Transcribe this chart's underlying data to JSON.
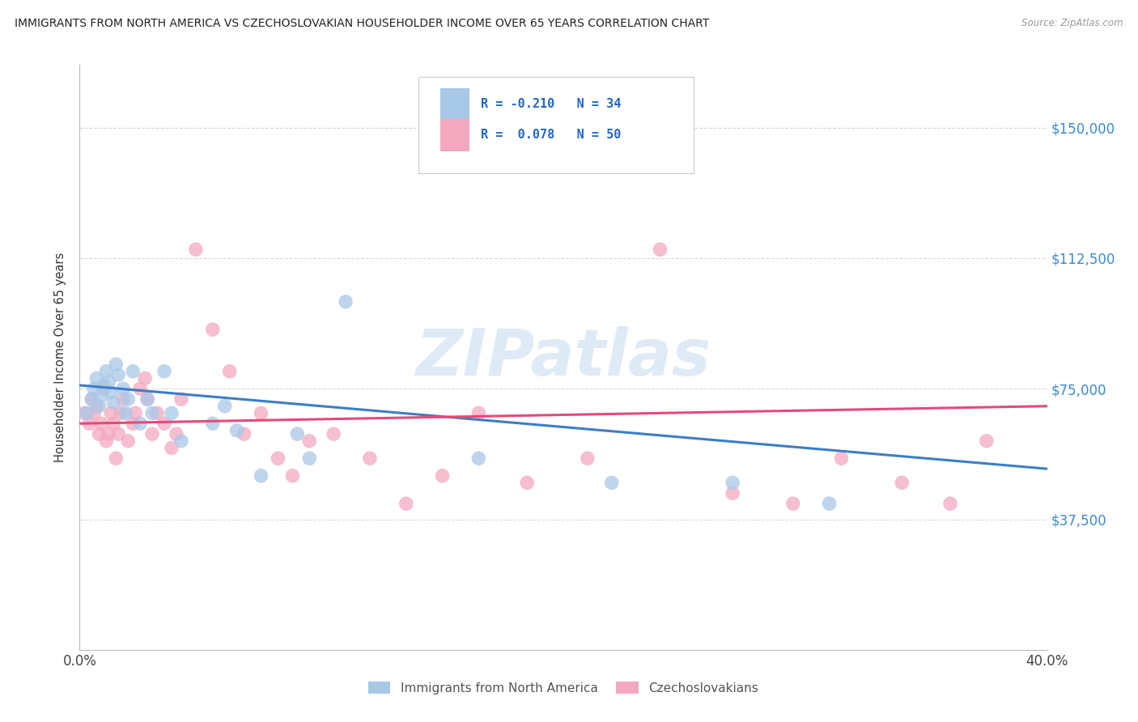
{
  "title": "IMMIGRANTS FROM NORTH AMERICA VS CZECHOSLOVAKIAN HOUSEHOLDER INCOME OVER 65 YEARS CORRELATION CHART",
  "source": "Source: ZipAtlas.com",
  "ylabel": "Householder Income Over 65 years",
  "legend_label_blue": "Immigrants from North America",
  "legend_label_pink": "Czechoslovakians",
  "xlim": [
    0.0,
    0.4
  ],
  "ylim": [
    0,
    168000
  ],
  "ytick_values": [
    37500,
    75000,
    112500,
    150000
  ],
  "ytick_labels": [
    "$37,500",
    "$75,000",
    "$112,500",
    "$150,000"
  ],
  "blue_color": "#a8c8e8",
  "pink_color": "#f4a8c0",
  "blue_line_color": "#3a7ec8",
  "pink_line_color": "#e84878",
  "blue_scatter_x": [
    0.003,
    0.005,
    0.006,
    0.007,
    0.008,
    0.009,
    0.01,
    0.011,
    0.012,
    0.013,
    0.014,
    0.015,
    0.016,
    0.018,
    0.019,
    0.02,
    0.022,
    0.025,
    0.028,
    0.03,
    0.035,
    0.038,
    0.042,
    0.055,
    0.06,
    0.065,
    0.075,
    0.09,
    0.095,
    0.11,
    0.165,
    0.22,
    0.27,
    0.31
  ],
  "blue_scatter_y": [
    68000,
    72000,
    75000,
    78000,
    70000,
    73000,
    76000,
    80000,
    77000,
    74000,
    71000,
    82000,
    79000,
    75000,
    68000,
    72000,
    80000,
    65000,
    72000,
    68000,
    80000,
    68000,
    60000,
    65000,
    70000,
    63000,
    50000,
    62000,
    55000,
    100000,
    55000,
    48000,
    48000,
    42000
  ],
  "pink_scatter_x": [
    0.002,
    0.004,
    0.005,
    0.006,
    0.007,
    0.008,
    0.009,
    0.01,
    0.011,
    0.012,
    0.013,
    0.014,
    0.015,
    0.016,
    0.017,
    0.018,
    0.02,
    0.022,
    0.023,
    0.025,
    0.027,
    0.028,
    0.03,
    0.032,
    0.035,
    0.038,
    0.04,
    0.042,
    0.048,
    0.055,
    0.062,
    0.068,
    0.075,
    0.082,
    0.088,
    0.095,
    0.105,
    0.12,
    0.135,
    0.15,
    0.165,
    0.185,
    0.21,
    0.24,
    0.27,
    0.295,
    0.315,
    0.34,
    0.36,
    0.375
  ],
  "pink_scatter_y": [
    68000,
    65000,
    72000,
    68000,
    70000,
    62000,
    65000,
    75000,
    60000,
    62000,
    68000,
    65000,
    55000,
    62000,
    68000,
    72000,
    60000,
    65000,
    68000,
    75000,
    78000,
    72000,
    62000,
    68000,
    65000,
    58000,
    62000,
    72000,
    115000,
    92000,
    80000,
    62000,
    68000,
    55000,
    50000,
    60000,
    62000,
    55000,
    42000,
    50000,
    68000,
    48000,
    55000,
    115000,
    45000,
    42000,
    55000,
    48000,
    42000,
    60000
  ],
  "blue_trend_x": [
    0.0,
    0.4
  ],
  "blue_trend_y": [
    76000,
    52000
  ],
  "pink_trend_x": [
    0.0,
    0.4
  ],
  "pink_trend_y": [
    65000,
    70000
  ],
  "watermark": "ZIPatlas",
  "background_color": "#ffffff",
  "grid_color": "#d8d8d8"
}
